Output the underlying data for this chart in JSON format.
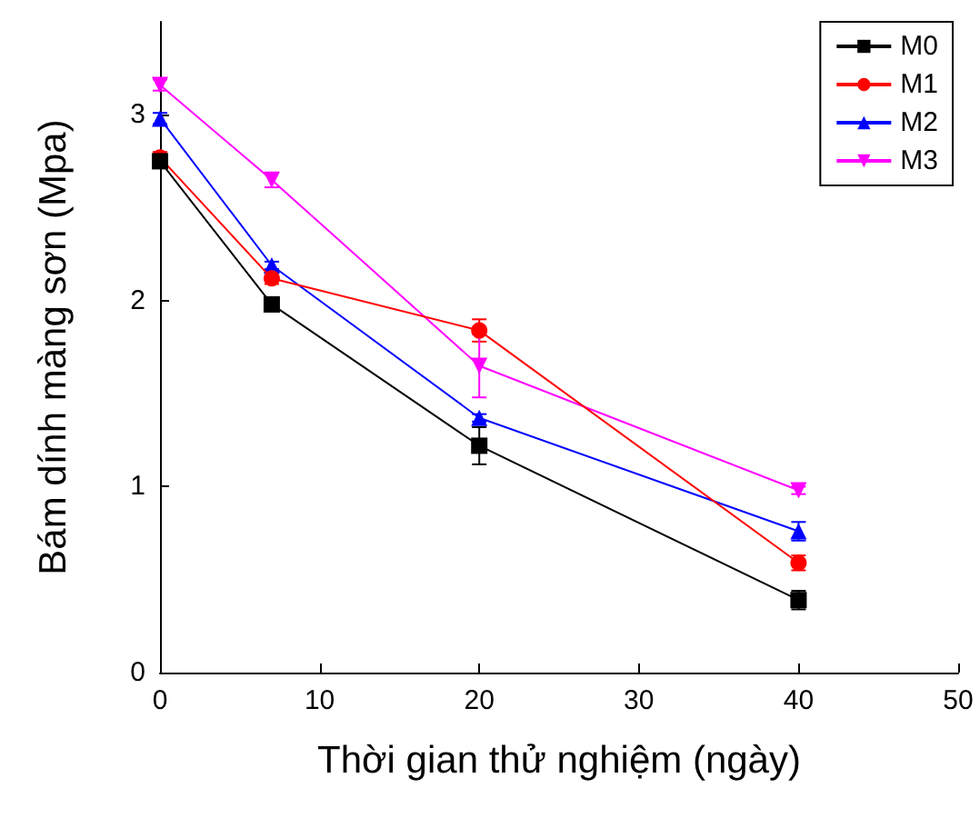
{
  "chart_data": {
    "type": "line",
    "xlabel": "Thời gian thử nghiệm (ngày)",
    "ylabel": "Bám dính màng sơn (Mpa)",
    "x": [
      0,
      7,
      20,
      40
    ],
    "xlim": [
      0,
      50
    ],
    "xticks": [
      0,
      10,
      20,
      30,
      40,
      50
    ],
    "ylim": [
      0,
      3.5
    ],
    "yticks": [
      0,
      1,
      2,
      3
    ],
    "grid": false,
    "legend": "top right",
    "series": [
      {
        "name": "M0",
        "color": "#000000",
        "marker": "square",
        "values": [
          2.75,
          1.98,
          1.22,
          0.39
        ],
        "errors": [
          0.02,
          0.02,
          0.1,
          0.05
        ]
      },
      {
        "name": "M1",
        "color": "#ff0000",
        "marker": "circle",
        "values": [
          2.77,
          2.12,
          1.84,
          0.59
        ],
        "errors": [
          0.03,
          0.03,
          0.06,
          0.04
        ]
      },
      {
        "name": "M2",
        "color": "#0000ff",
        "marker": "triangle",
        "values": [
          2.98,
          2.19,
          1.37,
          0.76
        ],
        "errors": [
          0.03,
          0.02,
          0.02,
          0.05
        ]
      },
      {
        "name": "M3",
        "color": "#ff00ff",
        "marker": "triangle-down",
        "values": [
          3.16,
          2.65,
          1.65,
          0.98
        ],
        "errors": [
          0.03,
          0.04,
          0.17,
          0.02
        ]
      }
    ]
  }
}
